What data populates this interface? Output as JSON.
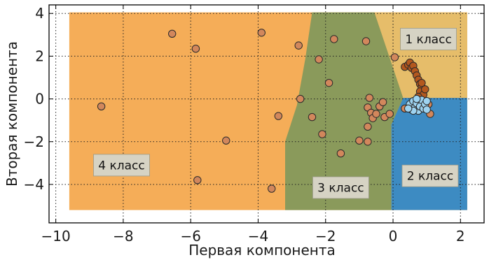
{
  "chart_data": {
    "type": "scatter",
    "xlabel": "Первая компонента",
    "ylabel": "Вторая компонента",
    "xlim": [
      -10.2,
      2.7
    ],
    "ylim": [
      -5.8,
      4.4
    ],
    "x_ticks": [
      -10,
      -8,
      -6,
      -4,
      -2,
      0,
      2
    ],
    "y_ticks": [
      -4,
      -2,
      0,
      2,
      4
    ],
    "x_tick_labels": [
      "−10",
      "−8",
      "−6",
      "−4",
      "−2",
      "0",
      "2"
    ],
    "y_tick_labels": [
      "−4",
      "−2",
      "0",
      "2",
      "4"
    ],
    "grid": true,
    "regions": [
      {
        "label": "1 класс",
        "color": "#e6bd6a",
        "label_at": [
          1.05,
          2.8
        ]
      },
      {
        "label": "2 класс",
        "color": "#3d8bc2",
        "label_at": [
          1.1,
          -3.6
        ]
      },
      {
        "label": "3 класс",
        "color": "#8a9a5b",
        "label_at": [
          -1.55,
          -4.15
        ]
      },
      {
        "label": "4 класс",
        "color": "#f5ad58",
        "label_at": [
          -8.05,
          -3.1
        ]
      }
    ],
    "series": [
      {
        "color": "#d2875c",
        "points": [
          [
            -8.65,
            -0.35
          ],
          [
            -6.55,
            3.05
          ],
          [
            -5.85,
            2.35
          ],
          [
            -5.8,
            -3.8
          ],
          [
            -4.95,
            -1.95
          ],
          [
            -3.9,
            3.1
          ],
          [
            -3.6,
            -4.2
          ],
          [
            -3.4,
            -0.8
          ],
          [
            -2.8,
            2.5
          ],
          [
            -2.75,
            0.0
          ],
          [
            -2.4,
            -0.85
          ],
          [
            -2.2,
            1.85
          ],
          [
            -2.1,
            -1.65
          ],
          [
            -1.9,
            0.75
          ],
          [
            -1.75,
            2.8
          ],
          [
            -1.55,
            -2.55
          ],
          [
            -1.0,
            -1.95
          ],
          [
            -0.8,
            2.7
          ],
          [
            -0.75,
            -0.4
          ],
          [
            -0.75,
            -1.3
          ],
          [
            -0.75,
            -2.0
          ],
          [
            -0.7,
            0.05
          ],
          [
            -0.65,
            -0.65
          ],
          [
            -0.6,
            -0.9
          ],
          [
            -0.5,
            -0.7
          ],
          [
            -0.4,
            -0.35
          ],
          [
            -0.3,
            -0.15
          ],
          [
            -0.25,
            -0.85
          ],
          [
            -0.1,
            -0.7
          ],
          [
            0.05,
            1.95
          ],
          [
            0.35,
            -0.45
          ],
          [
            0.7,
            -0.35
          ],
          [
            1.1,
            -0.7
          ],
          [
            1.05,
            -0.25
          ]
        ]
      },
      {
        "color": "#b4581e",
        "points": [
          [
            0.35,
            1.5
          ],
          [
            0.45,
            1.6
          ],
          [
            0.5,
            1.7
          ],
          [
            0.55,
            1.45
          ],
          [
            0.6,
            1.55
          ],
          [
            0.65,
            1.3
          ],
          [
            0.7,
            1.1
          ],
          [
            0.75,
            0.9
          ],
          [
            0.8,
            0.7
          ],
          [
            0.85,
            0.55
          ],
          [
            0.8,
            0.35
          ],
          [
            0.9,
            0.2
          ],
          [
            0.75,
            0.1
          ],
          [
            0.95,
            0.45
          ],
          [
            0.85,
            0.75
          ]
        ]
      },
      {
        "color": "#9ed3f0",
        "points": [
          [
            0.5,
            -0.25
          ],
          [
            0.55,
            -0.5
          ],
          [
            0.6,
            -0.1
          ],
          [
            0.65,
            -0.4
          ],
          [
            0.7,
            -0.2
          ],
          [
            0.75,
            -0.55
          ],
          [
            0.8,
            -0.35
          ],
          [
            0.85,
            -0.05
          ],
          [
            0.9,
            -0.45
          ],
          [
            0.95,
            -0.25
          ],
          [
            1.0,
            -0.5
          ],
          [
            0.6,
            -0.55
          ],
          [
            0.45,
            -0.45
          ],
          [
            1.0,
            -0.1
          ],
          [
            0.7,
            0.0
          ]
        ]
      }
    ]
  }
}
